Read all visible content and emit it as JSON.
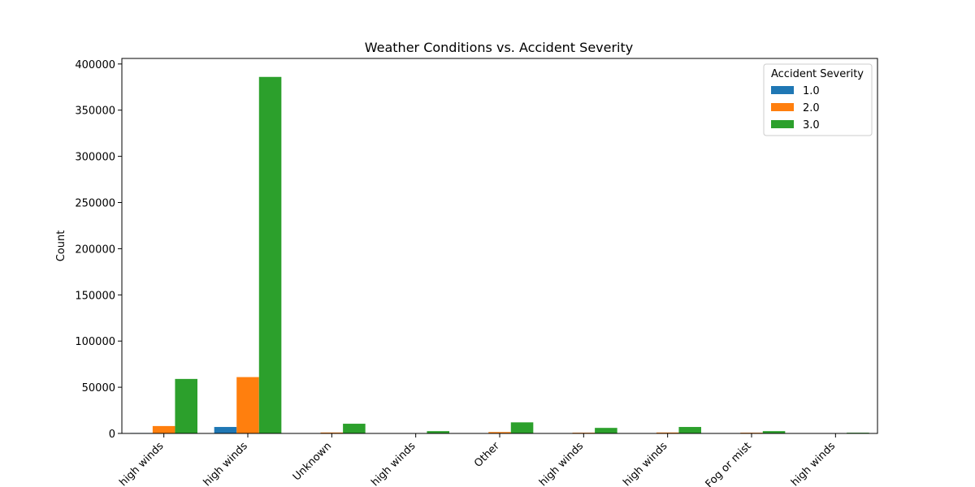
{
  "chart_data": {
    "type": "bar",
    "title": "Weather Conditions vs. Accident Severity",
    "xlabel": "",
    "ylabel": "Count",
    "ylim": [
      0,
      400000
    ],
    "yticks": [
      0,
      50000,
      100000,
      150000,
      200000,
      250000,
      300000,
      350000,
      400000
    ],
    "categories": [
      "high winds",
      "high winds",
      "Unknown",
      "high winds",
      "Other",
      "high winds",
      "high winds",
      "Fog or mist",
      "high winds"
    ],
    "legend": {
      "title": "Accident Severity",
      "position": "top-right"
    },
    "grid": false,
    "series": [
      {
        "name": "1.0",
        "color": "#1f77b4",
        "values": [
          500,
          7000,
          0,
          0,
          0,
          0,
          0,
          0,
          0
        ]
      },
      {
        "name": "2.0",
        "color": "#ff7f0e",
        "values": [
          8000,
          61000,
          1000,
          200,
          1500,
          800,
          1000,
          800,
          100
        ]
      },
      {
        "name": "3.0",
        "color": "#2ca02c",
        "values": [
          59000,
          386000,
          10500,
          2500,
          12000,
          6000,
          7000,
          2500,
          800
        ]
      }
    ]
  }
}
